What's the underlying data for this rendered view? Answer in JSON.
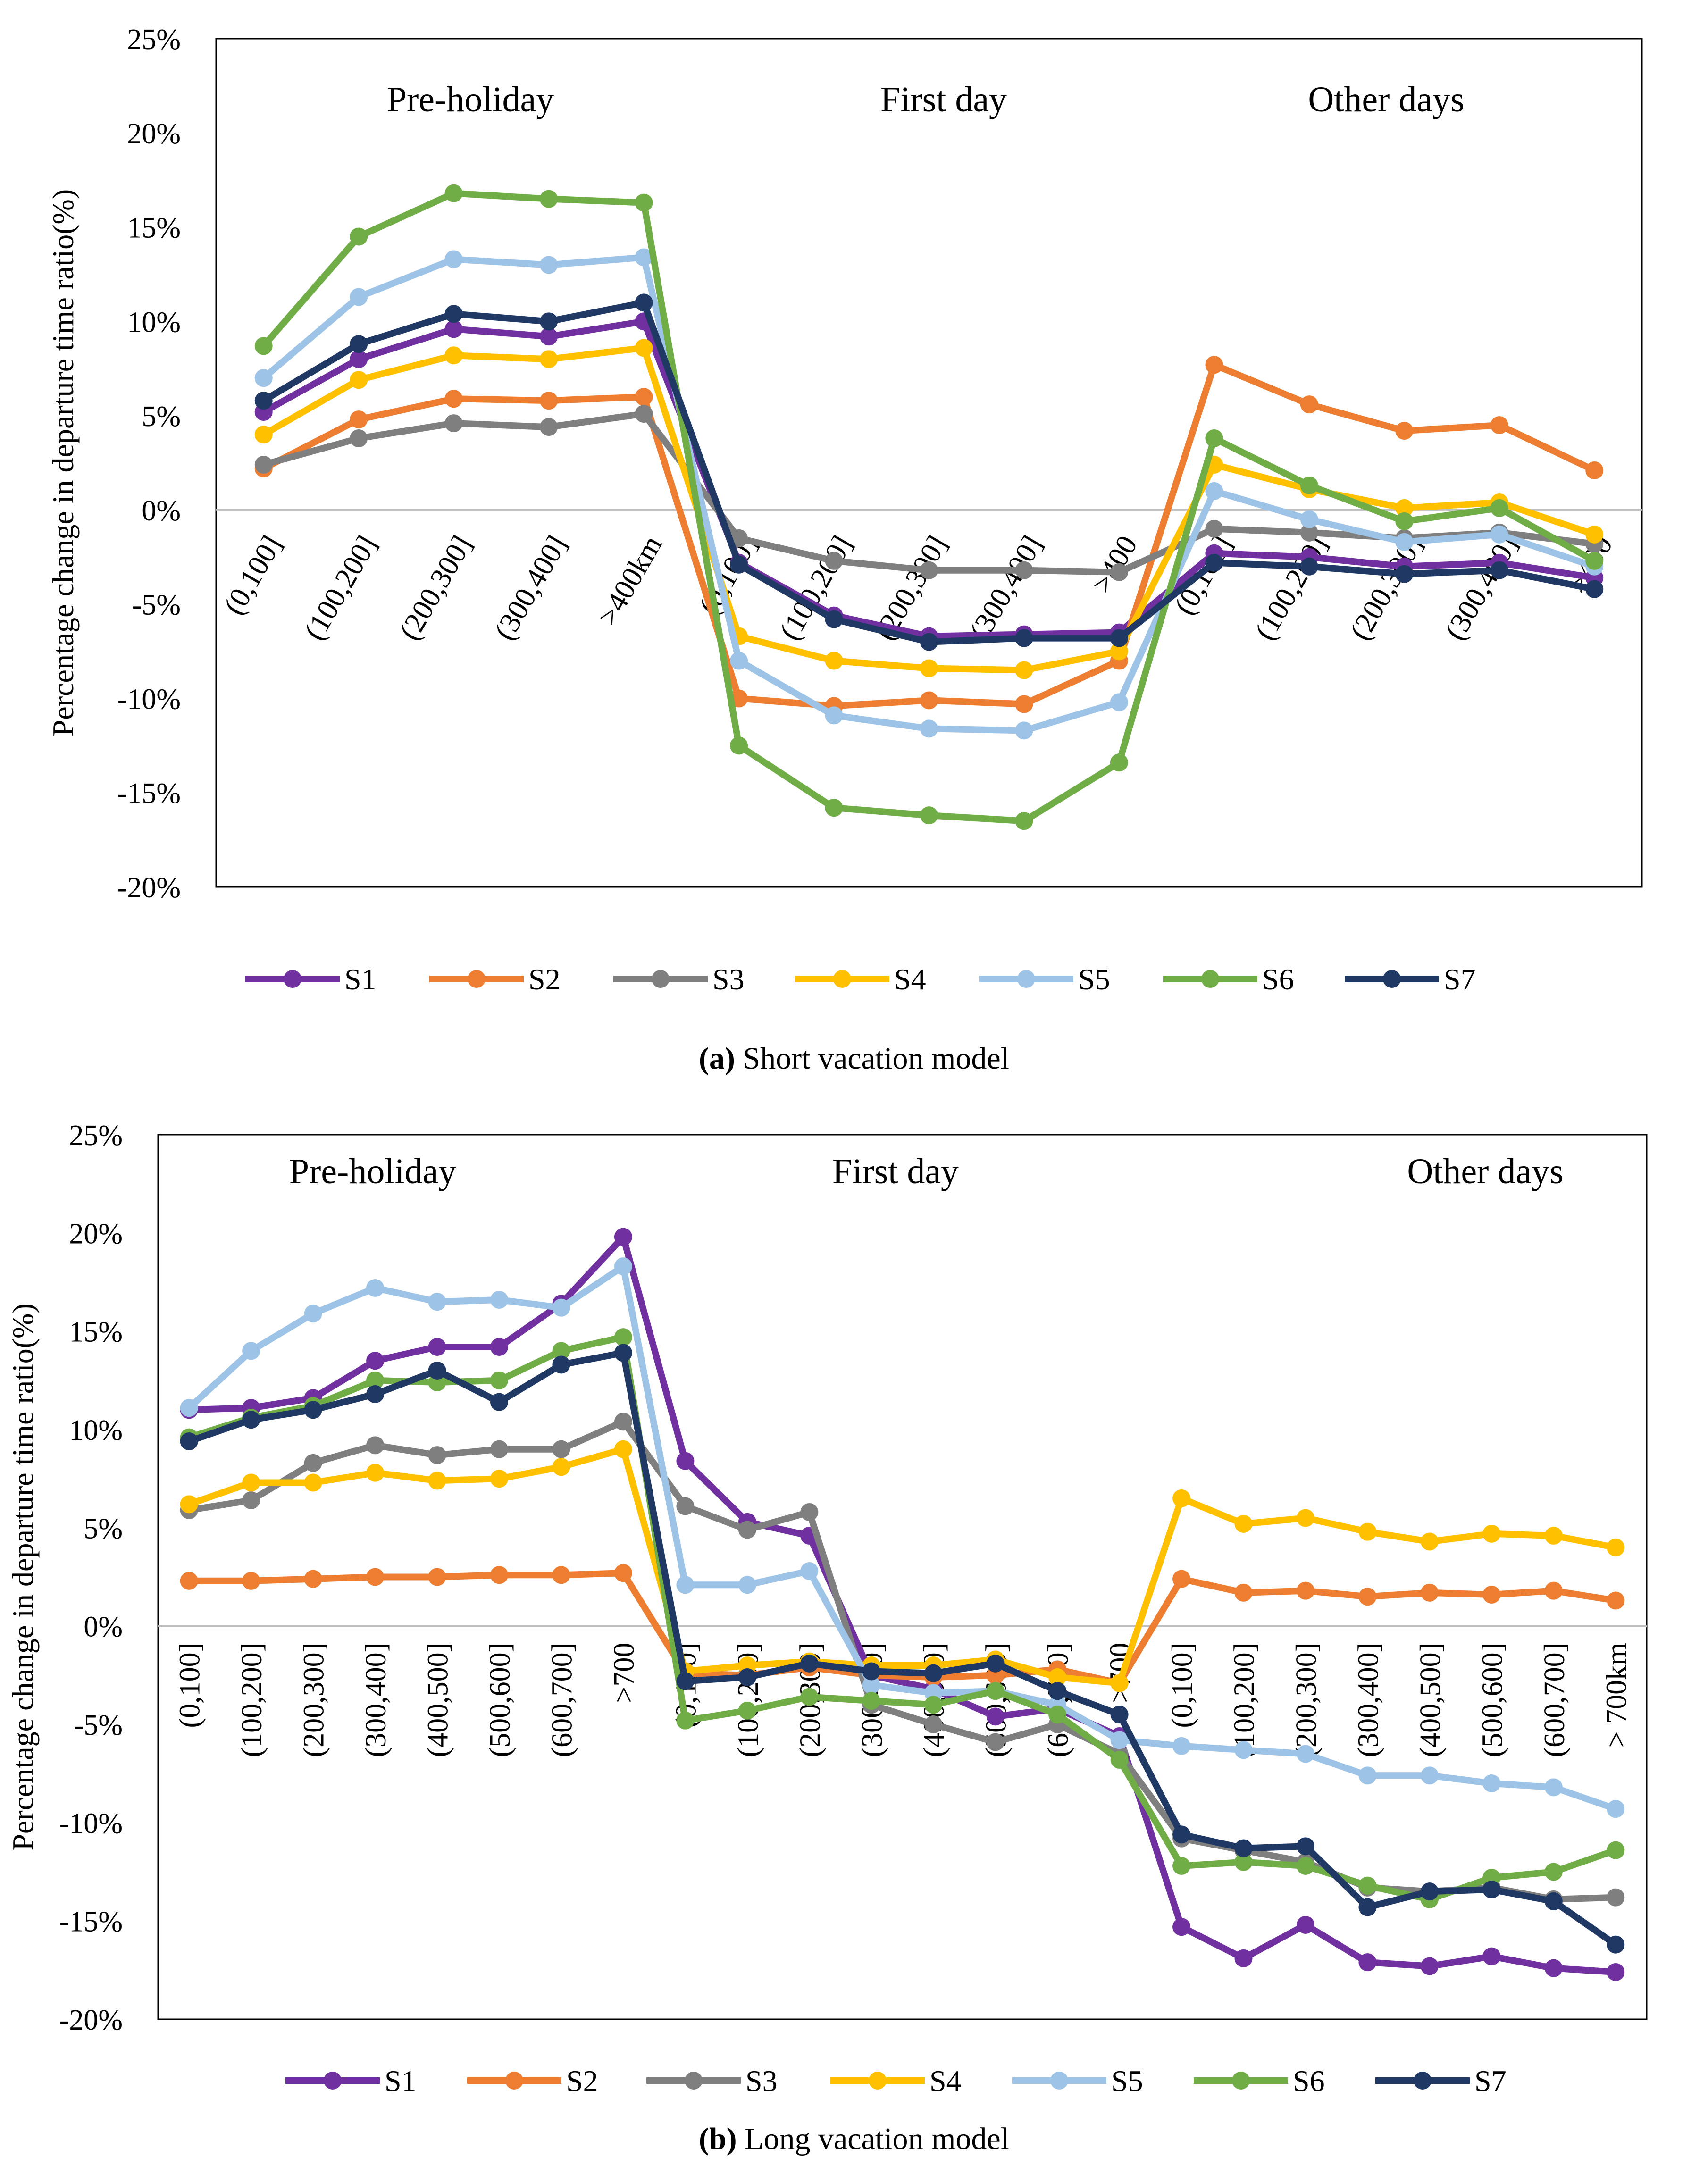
{
  "chart_data": [
    {
      "id": "a",
      "type": "line",
      "title": "",
      "caption_label": "(a)",
      "caption_text": "Short vacation model",
      "xlabel": "",
      "ylabel": "Percentage change in departure time ratio(%)",
      "ylim": [
        -20,
        25
      ],
      "yticks": [
        -20,
        -15,
        -10,
        -5,
        0,
        5,
        10,
        15,
        20,
        25
      ],
      "ytick_labels": [
        "-20%",
        "-15%",
        "-10%",
        "-5%",
        "0%",
        "5%",
        "10%",
        "15%",
        "20%",
        "25%"
      ],
      "grid": false,
      "legend_position": "bottom",
      "group_labels": [
        "Pre-holiday",
        "First day",
        "Other days"
      ],
      "categories": [
        "(0,100]",
        "(100,200]",
        "(200,300]",
        "(300,400]",
        ">400km",
        "(0,100]",
        "(100,200]",
        "(200,300]",
        "(300,400]",
        ">400",
        "(0,100]",
        "(100,200]",
        "(200,300]",
        "(300,400]",
        ">400"
      ],
      "series": [
        {
          "name": "S1",
          "color": "#7030A0",
          "values": [
            5.2,
            8.0,
            9.6,
            9.2,
            10.0,
            -2.8,
            -5.6,
            -6.7,
            -6.6,
            -6.5,
            -2.3,
            -2.5,
            -3.0,
            -2.8,
            -3.6
          ]
        },
        {
          "name": "S2",
          "color": "#ED7D31",
          "values": [
            2.2,
            4.8,
            5.9,
            5.8,
            6.0,
            -10.0,
            -10.4,
            -10.1,
            -10.3,
            -8.0,
            7.7,
            5.6,
            4.2,
            4.5,
            2.1
          ]
        },
        {
          "name": "S3",
          "color": "#7F7F7F",
          "values": [
            2.4,
            3.8,
            4.6,
            4.4,
            5.1,
            -1.5,
            -2.7,
            -3.2,
            -3.2,
            -3.3,
            -1.0,
            -1.2,
            -1.5,
            -1.2,
            -1.8
          ]
        },
        {
          "name": "S4",
          "color": "#FFC000",
          "values": [
            4.0,
            6.9,
            8.2,
            8.0,
            8.6,
            -6.7,
            -8.0,
            -8.4,
            -8.5,
            -7.5,
            2.4,
            1.1,
            0.1,
            0.4,
            -1.3
          ]
        },
        {
          "name": "S5",
          "color": "#9DC3E6",
          "values": [
            7.0,
            11.3,
            13.3,
            13.0,
            13.4,
            -8.0,
            -10.9,
            -11.6,
            -11.7,
            -10.2,
            1.0,
            -0.5,
            -1.7,
            -1.3,
            -3.0
          ]
        },
        {
          "name": "S6",
          "color": "#70AD47",
          "values": [
            8.7,
            14.5,
            16.8,
            16.5,
            16.3,
            -12.5,
            -15.8,
            -16.2,
            -16.5,
            -13.4,
            3.8,
            1.3,
            -0.6,
            0.1,
            -2.7
          ]
        },
        {
          "name": "S7",
          "color": "#203864",
          "values": [
            5.8,
            8.8,
            10.4,
            10.0,
            11.0,
            -2.9,
            -5.8,
            -7.0,
            -6.8,
            -6.8,
            -2.8,
            -3.0,
            -3.4,
            -3.2,
            -4.2
          ]
        }
      ]
    },
    {
      "id": "b",
      "type": "line",
      "title": "",
      "caption_label": "(b)",
      "caption_text": "Long vacation model",
      "xlabel": "",
      "ylabel": "Percentage change in departure time ratio(%)",
      "ylim": [
        -20,
        25
      ],
      "yticks": [
        -20,
        -15,
        -10,
        -5,
        0,
        5,
        10,
        15,
        20,
        25
      ],
      "ytick_labels": [
        "-20%",
        "-15%",
        "-10%",
        "-5%",
        "0%",
        "5%",
        "10%",
        "15%",
        "20%",
        "25%"
      ],
      "grid": false,
      "legend_position": "bottom",
      "group_labels": [
        "Pre-holiday",
        "First day",
        "Other days"
      ],
      "categories": [
        "(0,100]",
        "(100,200]",
        "(200,300]",
        "(300,400]",
        "(400,500]",
        "(500,600]",
        "(600,700]",
        ">700",
        "(0,100]",
        "(100,200]",
        "(200,300]",
        "(300,400]",
        "(400,500]",
        "(500,600]",
        "(600,700]",
        ">700",
        "(0,100]",
        "(100,200]",
        "(200,300]",
        "(300,400]",
        "(400,500]",
        "(500,600]",
        "(600,700]",
        "> 700km"
      ],
      "series": [
        {
          "name": "S1",
          "color": "#7030A0",
          "values": [
            11.0,
            11.1,
            11.6,
            13.5,
            14.2,
            14.2,
            16.4,
            19.8,
            8.4,
            5.3,
            4.6,
            -2.5,
            -3.2,
            -4.6,
            -4.2,
            -5.6,
            -15.3,
            -16.9,
            -15.2,
            -17.1,
            -17.3,
            -16.8,
            -17.4,
            -17.6
          ]
        },
        {
          "name": "S2",
          "color": "#ED7D31",
          "values": [
            2.3,
            2.3,
            2.4,
            2.5,
            2.5,
            2.6,
            2.6,
            2.7,
            -2.4,
            -2.5,
            -2.1,
            -2.5,
            -2.6,
            -2.5,
            -2.2,
            -2.9,
            2.4,
            1.7,
            1.8,
            1.5,
            1.7,
            1.6,
            1.8,
            1.3
          ]
        },
        {
          "name": "S3",
          "color": "#7F7F7F",
          "values": [
            5.9,
            6.4,
            8.3,
            9.2,
            8.7,
            9.0,
            9.0,
            10.4,
            6.1,
            4.9,
            5.8,
            -4.0,
            -5.0,
            -5.9,
            -5.0,
            -6.5,
            -10.8,
            -11.4,
            -12.0,
            -13.3,
            -13.5,
            -13.3,
            -13.9,
            -13.8
          ]
        },
        {
          "name": "S4",
          "color": "#FFC000",
          "values": [
            6.2,
            7.3,
            7.3,
            7.8,
            7.4,
            7.5,
            8.1,
            9.0,
            -2.3,
            -2.0,
            -1.8,
            -2.0,
            -2.0,
            -1.7,
            -2.6,
            -2.9,
            6.5,
            5.2,
            5.5,
            4.8,
            4.3,
            4.7,
            4.6,
            4.0
          ]
        },
        {
          "name": "S5",
          "color": "#9DC3E6",
          "values": [
            11.1,
            14.0,
            15.9,
            17.2,
            16.5,
            16.6,
            16.2,
            18.3,
            2.1,
            2.1,
            2.8,
            -3.0,
            -3.4,
            -3.3,
            -4.0,
            -5.8,
            -6.1,
            -6.3,
            -6.5,
            -7.6,
            -7.6,
            -8.0,
            -8.2,
            -9.3
          ]
        },
        {
          "name": "S6",
          "color": "#70AD47",
          "values": [
            9.6,
            10.6,
            11.2,
            12.5,
            12.4,
            12.5,
            14.0,
            14.7,
            -4.8,
            -4.3,
            -3.6,
            -3.8,
            -4.0,
            -3.3,
            -4.5,
            -6.8,
            -12.2,
            -12.0,
            -12.2,
            -13.2,
            -13.9,
            -12.8,
            -12.5,
            -11.4
          ]
        },
        {
          "name": "S7",
          "color": "#203864",
          "values": [
            9.4,
            10.5,
            11.0,
            11.8,
            13.0,
            11.4,
            13.3,
            13.9,
            -2.8,
            -2.6,
            -1.9,
            -2.3,
            -2.4,
            -1.9,
            -3.3,
            -4.5,
            -10.6,
            -11.3,
            -11.2,
            -14.3,
            -13.5,
            -13.4,
            -14.0,
            -16.2
          ]
        }
      ]
    }
  ]
}
